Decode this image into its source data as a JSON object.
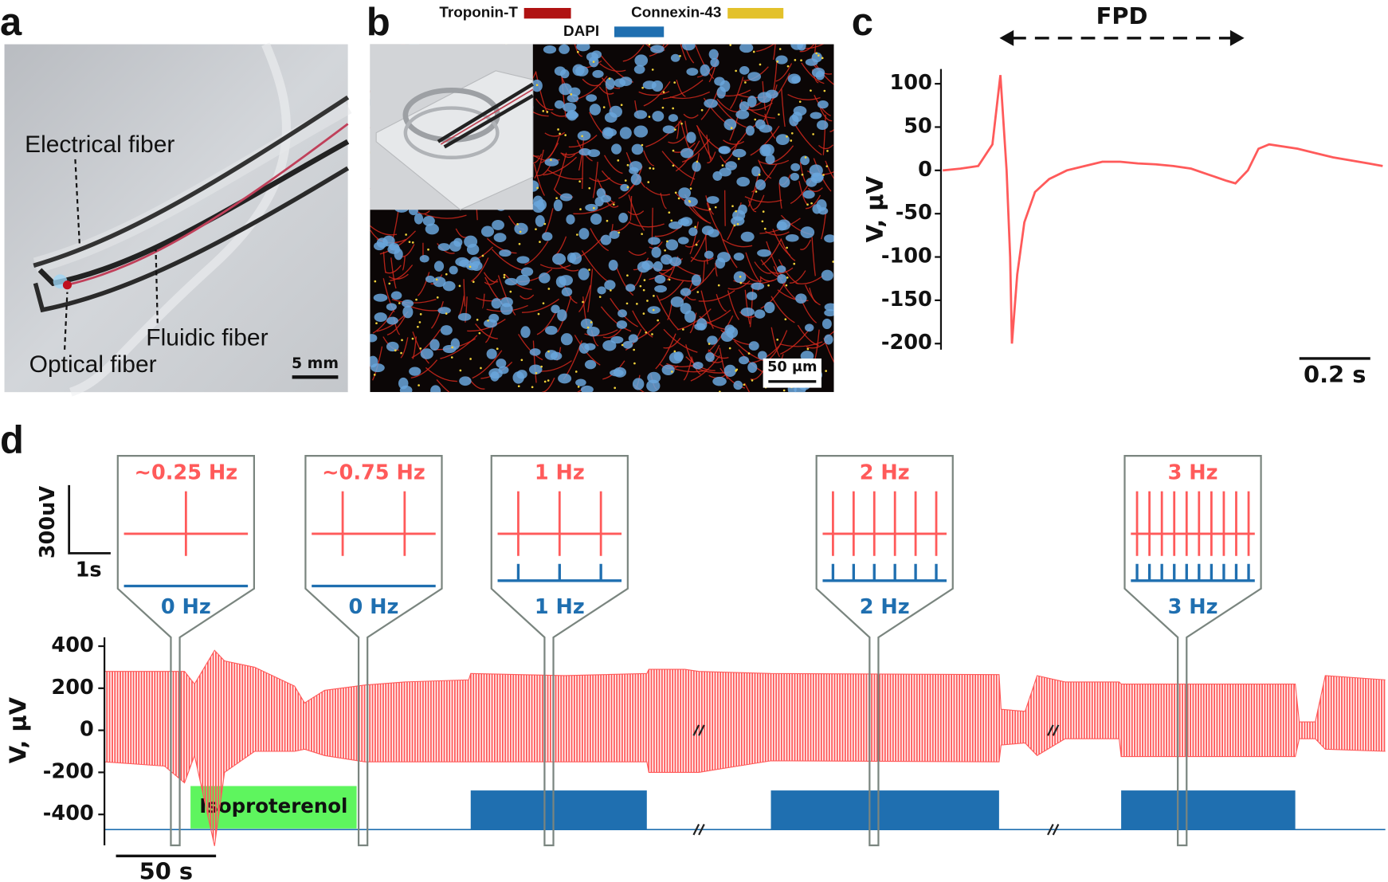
{
  "panel_labels": [
    "a",
    "b",
    "c",
    "d"
  ],
  "panel_a": {
    "labels": [
      "Electrical fiber",
      "Fluidic fiber",
      "Optical fiber"
    ],
    "scale_bar": "5 mm"
  },
  "panel_b": {
    "legend": [
      {
        "name": "Troponin-T",
        "color": "#b01212"
      },
      {
        "name": "Connexin-43",
        "color": "#e3c12a"
      },
      {
        "name": "DAPI",
        "color": "#1f6fb0"
      }
    ],
    "scale_bar": "50 μm"
  },
  "chart_data": [
    {
      "type": "line",
      "ylabel": "V, μV",
      "color": "#ff5a5a",
      "x": [
        0,
        0.05,
        0.1,
        0.14,
        0.1625,
        0.18,
        0.19,
        0.195,
        0.21,
        0.23,
        0.26,
        0.3,
        0.35,
        0.4,
        0.45,
        0.5,
        0.55,
        0.6,
        0.65,
        0.7,
        0.75,
        0.8,
        0.825,
        0.86,
        0.89,
        0.92,
        1.0,
        1.1,
        1.2,
        1.24
      ],
      "values": [
        0,
        2,
        5,
        30,
        110,
        0,
        -100,
        -200,
        -120,
        -60,
        -25,
        -10,
        0,
        5,
        10,
        10,
        8,
        7,
        5,
        2,
        -5,
        -12,
        -15,
        0,
        25,
        30,
        25,
        15,
        8,
        5
      ],
      "xlim": [
        0,
        1.24
      ],
      "ylim": [
        -207,
        117
      ],
      "yticks": [
        -200,
        -150,
        -100,
        -50,
        0,
        50,
        100
      ],
      "annotation": {
        "label": "FPD",
        "x": [
          0.16,
          0.85
        ]
      },
      "scale_bar": {
        "value": 0.2,
        "label": "0.2 s"
      }
    },
    {
      "type": "spike_train",
      "ylabel": "V, μV",
      "color": "#ff5a5a",
      "x": [
        0,
        30,
        40,
        45,
        55,
        60,
        75,
        95,
        100,
        110,
        130,
        150,
        182,
        183,
        230,
        271,
        272,
        290,
        297,
        333,
        447,
        448,
        460,
        466,
        480,
        507,
        508,
        595,
        597,
        605,
        610,
        640
      ],
      "upper": [
        280,
        280,
        280,
        220,
        380,
        330,
        300,
        210,
        130,
        190,
        215,
        230,
        240,
        270,
        260,
        270,
        290,
        290,
        280,
        270,
        265,
        100,
        90,
        260,
        230,
        230,
        220,
        220,
        40,
        40,
        260,
        240
      ],
      "lower": [
        -150,
        -170,
        -250,
        -120,
        -550,
        -200,
        -100,
        -100,
        -90,
        -120,
        -150,
        -150,
        -150,
        -150,
        -150,
        -150,
        -200,
        -200,
        -200,
        -145,
        -150,
        -70,
        -60,
        -120,
        -40,
        -40,
        -125,
        -125,
        -40,
        -40,
        -90,
        -100
      ],
      "xlim": [
        0,
        640
      ],
      "ylim": [
        -547,
        442
      ],
      "yticks": [
        -400,
        -200,
        0,
        200,
        400
      ],
      "breaks": [
        297,
        474
      ],
      "scale_bar": {
        "value": 50,
        "label": "50 s"
      },
      "drug": {
        "label": "Isoproterenol",
        "color": "#5ef55e",
        "x": [
          43,
          126
        ],
        "y": [
          -467,
          -265
        ]
      },
      "stimulus": {
        "color": "#1f6fb0",
        "baseline": -472,
        "top": -286,
        "blocks": [
          [
            183,
            271
          ],
          [
            333,
            447
          ],
          [
            508,
            595
          ]
        ]
      },
      "insets": [
        {
          "x": 35.4,
          "response_label": "~0.25 Hz",
          "stimulus_label": "0 Hz",
          "spikes": 1,
          "pulses": 0
        },
        {
          "x": 129.2,
          "response_label": "~0.75 Hz",
          "stimulus_label": "0 Hz",
          "spikes": 2,
          "pulses": 0
        },
        {
          "x": 222.1,
          "response_label": "1 Hz",
          "stimulus_label": "1 Hz",
          "spikes": 3,
          "pulses": 3
        },
        {
          "x": 384.5,
          "response_label": "2 Hz",
          "stimulus_label": "2 Hz",
          "spikes": 6,
          "pulses": 6
        },
        {
          "x": 538.5,
          "response_label": "3 Hz",
          "stimulus_label": "3 Hz",
          "spikes": 10,
          "pulses": 10
        }
      ],
      "inset_scale_bar": {
        "y_label": "300uV",
        "x_label": "1s"
      }
    }
  ]
}
